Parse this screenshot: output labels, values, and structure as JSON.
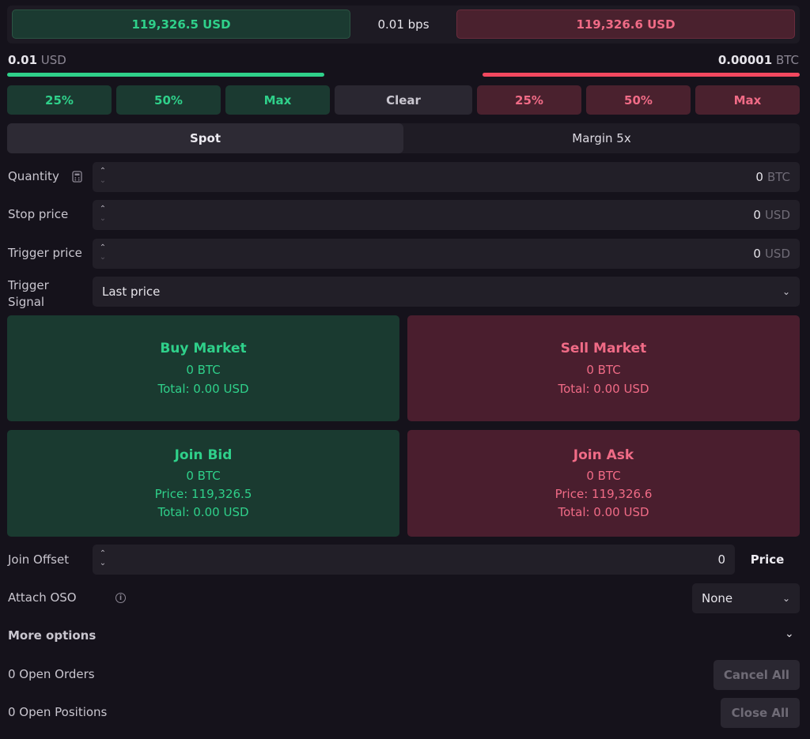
{
  "top": {
    "bid_price": "119,326.5 USD",
    "spread": "0.01 bps",
    "ask_price": "119,326.6 USD"
  },
  "sizes": {
    "left_value": "0.01",
    "left_unit": "USD",
    "right_value": "0.00001",
    "right_unit": "BTC"
  },
  "percent_buttons": {
    "buy": [
      "25%",
      "50%",
      "Max"
    ],
    "clear": "Clear",
    "sell": [
      "25%",
      "50%",
      "Max"
    ]
  },
  "mode": {
    "spot": "Spot",
    "margin": "Margin 5x"
  },
  "fields": {
    "quantity": {
      "label": "Quantity",
      "value": "0",
      "unit": "BTC"
    },
    "stop_price": {
      "label": "Stop price",
      "value": "0",
      "unit": "USD"
    },
    "trigger_price": {
      "label": "Trigger price",
      "value": "0",
      "unit": "USD"
    },
    "trigger_signal": {
      "label_line1": "Trigger",
      "label_line2": "Signal",
      "value": "Last price"
    }
  },
  "cards": {
    "buy_market": {
      "title": "Buy Market",
      "qty": "0 BTC",
      "total": "Total: 0.00 USD"
    },
    "sell_market": {
      "title": "Sell Market",
      "qty": "0 BTC",
      "total": "Total: 0.00 USD"
    },
    "join_bid": {
      "title": "Join Bid",
      "qty": "0 BTC",
      "price": "Price: 119,326.5",
      "total": "Total: 0.00 USD"
    },
    "join_ask": {
      "title": "Join Ask",
      "qty": "0 BTC",
      "price": "Price: 119,326.6",
      "total": "Total: 0.00 USD"
    }
  },
  "join_offset": {
    "label": "Join Offset",
    "value": "0",
    "unit_label": "Price"
  },
  "attach_oso": {
    "label": "Attach OSO",
    "value": "None"
  },
  "more_options": {
    "label": "More options"
  },
  "orders": {
    "label": "0 Open Orders",
    "button": "Cancel All"
  },
  "positions": {
    "label": "0 Open Positions",
    "button": "Close All"
  },
  "colors": {
    "buy": "#2fd08a",
    "sell": "#f06b86",
    "background": "#15121b"
  }
}
